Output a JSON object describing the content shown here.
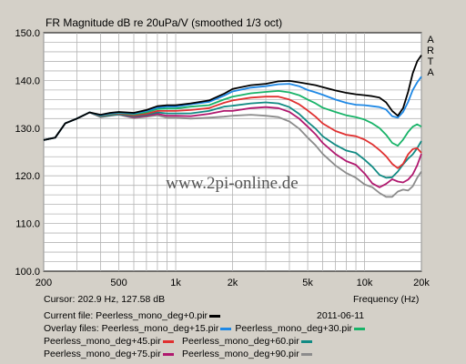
{
  "chart_data": {
    "type": "line",
    "title": "FR Magnitude dB re 20uPa/V (smoothed 1/3 oct)",
    "brand": "ARTA",
    "watermark": "www.2pi-online.de",
    "xlabel": "Frequency (Hz)",
    "xscale": "log",
    "xlim": [
      200,
      20000
    ],
    "ylim": [
      100,
      150
    ],
    "grid": true,
    "x_ticks": [
      {
        "v": 200,
        "label": "200"
      },
      {
        "v": 500,
        "label": "500"
      },
      {
        "v": 1000,
        "label": "1k"
      },
      {
        "v": 2000,
        "label": "2k"
      },
      {
        "v": 5000,
        "label": "5k"
      },
      {
        "v": 10000,
        "label": "10k"
      },
      {
        "v": 20000,
        "label": "20k"
      }
    ],
    "y_ticks": [
      {
        "v": 100,
        "label": "100.0"
      },
      {
        "v": 110,
        "label": "110.0"
      },
      {
        "v": 120,
        "label": "120.0"
      },
      {
        "v": 130,
        "label": "130.0"
      },
      {
        "v": 140,
        "label": "140.0"
      },
      {
        "v": 150,
        "label": "150.0"
      }
    ],
    "x": [
      200,
      230,
      260,
      300,
      350,
      400,
      450,
      500,
      600,
      700,
      800,
      900,
      1000,
      1200,
      1500,
      1800,
      2000,
      2500,
      3000,
      3500,
      4000,
      4500,
      5000,
      5500,
      6000,
      7000,
      8000,
      9000,
      10000,
      11000,
      12000,
      13000,
      14000,
      15000,
      16000,
      17000,
      18000,
      19000,
      20000
    ],
    "series": [
      {
        "name": "Peerless_mono_deg+0.pir",
        "color": "#000000",
        "values": [
          127.5,
          128,
          131,
          132,
          133.3,
          132.8,
          133.2,
          133.4,
          133.2,
          133.8,
          134.6,
          134.8,
          134.8,
          135.2,
          135.8,
          137.2,
          138.2,
          139,
          139.3,
          139.8,
          139.9,
          139.6,
          139.3,
          139,
          138.6,
          137.9,
          137.4,
          137.1,
          136.9,
          136.7,
          136.4,
          135.4,
          133.6,
          132.6,
          134.2,
          137.6,
          141.5,
          144,
          145.3
        ]
      },
      {
        "name": "Peerless_mono_deg+15.pir",
        "color": "#1e88e5",
        "values": [
          127.5,
          128,
          131,
          132,
          133.3,
          132.7,
          133.1,
          133.3,
          133.1,
          133.6,
          134.3,
          134.5,
          134.5,
          135,
          135.5,
          136.8,
          137.7,
          138.5,
          138.8,
          139.2,
          139.3,
          138.8,
          138,
          137.5,
          137,
          136,
          135.3,
          134.9,
          134.8,
          134.6,
          134.4,
          133.9,
          132.5,
          132.2,
          133.4,
          135.5,
          138,
          139.6,
          140.8
        ]
      },
      {
        "name": "Peerless_mono_deg+30.pir",
        "color": "#18b368",
        "values": [
          127.5,
          128,
          131,
          132,
          133.3,
          132.6,
          133,
          133.2,
          132.9,
          133.3,
          134,
          134.1,
          134.1,
          134.5,
          134.8,
          136,
          136.6,
          137.3,
          137.6,
          137.8,
          137.5,
          136.9,
          136,
          135.2,
          134.3,
          133.4,
          132.7,
          132.3,
          131.8,
          131,
          130,
          128.6,
          126.9,
          126.3,
          127.6,
          129.2,
          130.3,
          130.8,
          130.3
        ]
      },
      {
        "name": "Peerless_mono_deg+45.pir",
        "color": "#e03030",
        "values": [
          127.5,
          128,
          131,
          132,
          133.3,
          132.5,
          132.9,
          133.1,
          132.7,
          133,
          133.6,
          133.6,
          133.6,
          133.8,
          134.2,
          135.3,
          135.8,
          136.4,
          136.6,
          136.6,
          136,
          135,
          133.7,
          132.4,
          131,
          129.4,
          128.6,
          128.3,
          127.6,
          126.6,
          125.4,
          124.1,
          122.5,
          121.6,
          122.5,
          124.5,
          125.6,
          125.8,
          124.8
        ]
      },
      {
        "name": "Peerless_mono_deg+60.pir",
        "color": "#118a83",
        "values": [
          127.5,
          128,
          131,
          132,
          133.3,
          132.4,
          132.7,
          132.9,
          132.5,
          132.8,
          133.3,
          133.1,
          133.1,
          133.1,
          133.6,
          134.5,
          134.7,
          135.2,
          135.4,
          135.2,
          134.4,
          133,
          131.3,
          129.9,
          128.3,
          126.5,
          125.3,
          124.8,
          123.4,
          121.9,
          120.2,
          119.6,
          119.7,
          120.9,
          122.4,
          123.6,
          124.5,
          125.8,
          127.3
        ]
      },
      {
        "name": "Peerless_mono_deg+75.pir",
        "color": "#b0186e",
        "values": [
          127.5,
          128,
          131,
          132,
          133.3,
          132.4,
          132.7,
          132.9,
          132.3,
          132.6,
          133,
          132.6,
          132.6,
          132.5,
          133,
          133.6,
          133.6,
          134.2,
          134.4,
          134.2,
          133.4,
          132,
          130.3,
          128.7,
          126.9,
          124.6,
          123.1,
          122.3,
          120.5,
          118.4,
          117.6,
          118.3,
          119.3,
          118.8,
          118.6,
          119.2,
          120.3,
          122.2,
          124.6
        ]
      },
      {
        "name": "Peerless_mono_deg+90.pir",
        "color": "#8c8c8c",
        "values": [
          127.5,
          128,
          131,
          132,
          133.3,
          132.3,
          132.6,
          132.8,
          132.1,
          132.4,
          132.7,
          132.2,
          132.2,
          132,
          132.2,
          132.4,
          132.6,
          132.8,
          132.6,
          132.3,
          131.4,
          129.9,
          128,
          126.4,
          124.6,
          122.2,
          120.6,
          119.6,
          118.2,
          117.6,
          116.4,
          115.6,
          115.6,
          116.7,
          117.1,
          116.9,
          117.8,
          119.6,
          120.9
        ]
      }
    ]
  },
  "info": {
    "cursor": "Cursor: 202.9 Hz, 127.58 dB",
    "x_caption": "Frequency (Hz)",
    "current_label": "Current file: Peerless_mono_deg+0.pir",
    "date": "2011-06-11",
    "overlay_prefix": "Overlay files: ",
    "overlays": [
      "Peerless_mono_deg+15.pir",
      "Peerless_mono_deg+30.pir",
      "Peerless_mono_deg+45.pir",
      "Peerless_mono_deg+60.pir",
      "Peerless_mono_deg+75.pir",
      "Peerless_mono_deg+90.pir"
    ]
  }
}
